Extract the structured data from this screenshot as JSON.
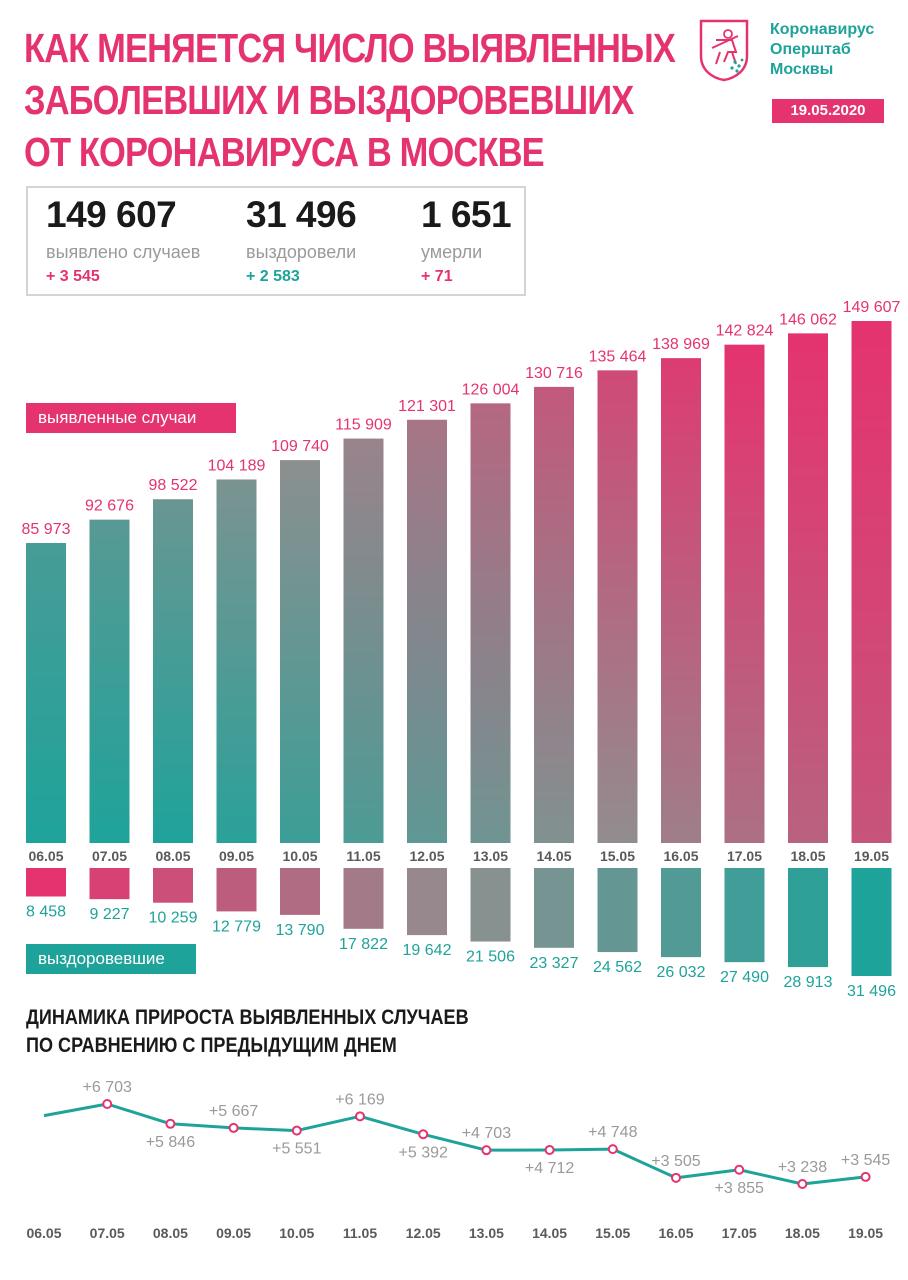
{
  "header": {
    "title_lines": [
      "КАК МЕНЯЕТСЯ ЧИСЛО ВЫЯВЛЕННЫХ",
      "ЗАБОЛЕВШИХ И ВЫЗДОРОВЕВШИХ",
      "ОТ КОРОНАВИРУСА В МОСКВЕ"
    ],
    "brand_lines": [
      "Коронавирус",
      "Оперштаб",
      "Москвы"
    ],
    "date": "19.05.2020",
    "logo_icon": "moscow-coat-of-arms-icon"
  },
  "summary": {
    "cases": {
      "value": "149 607",
      "label": "выявлено случаев",
      "delta": "+ 3 545"
    },
    "recovered": {
      "value": "31 496",
      "label": "выздоровели",
      "delta": "+ 2 583"
    },
    "deaths": {
      "value": "1 651",
      "label": "умерли",
      "delta": "+ 71"
    }
  },
  "labels": {
    "cases_tag": "выявленные случаи",
    "recovered_tag": "выздоровевшие",
    "growth_title_lines": [
      "ДИНАМИКА ПРИРОСТА ВЫЯВЛЕННЫХ СЛУЧАЕВ",
      "ПО СРАВНЕНИЮ С ПРЕДЫДУЩИМ ДНЕМ"
    ]
  },
  "colors": {
    "pink": "#e5336f",
    "teal": "#1ea39a",
    "gray_label": "#9a9a9a",
    "date_label": "#5a5a5a"
  },
  "chart_data": [
    {
      "type": "bar",
      "series_role": "cumulative detected cases",
      "categories": [
        "06.05",
        "07.05",
        "08.05",
        "09.05",
        "10.05",
        "11.05",
        "12.05",
        "13.05",
        "14.05",
        "15.05",
        "16.05",
        "17.05",
        "18.05",
        "19.05"
      ],
      "values": [
        85973,
        92676,
        98522,
        104189,
        109740,
        115909,
        121301,
        126004,
        130716,
        135464,
        138969,
        142824,
        146062,
        149607
      ],
      "value_labels": [
        "85 973",
        "92 676",
        "98 522",
        "104 189",
        "109 740",
        "115 909",
        "121 301",
        "126 004",
        "130 716",
        "135 464",
        "138 969",
        "142 824",
        "146 062",
        "149 607"
      ],
      "legend": "выявленные случаи"
    },
    {
      "type": "bar",
      "series_role": "cumulative recovered",
      "categories": [
        "06.05",
        "07.05",
        "08.05",
        "09.05",
        "10.05",
        "11.05",
        "12.05",
        "13.05",
        "14.05",
        "15.05",
        "16.05",
        "17.05",
        "18.05",
        "19.05"
      ],
      "values": [
        8458,
        9227,
        10259,
        12779,
        13790,
        17822,
        19642,
        21506,
        23327,
        24562,
        26032,
        27490,
        28913,
        31496
      ],
      "value_labels": [
        "8 458",
        "9 227",
        "10 259",
        "12 779",
        "13 790",
        "17 822",
        "19 642",
        "21 506",
        "23 327",
        "24 562",
        "26 032",
        "27 490",
        "28 913",
        "31 496"
      ],
      "legend": "выздоровевшие",
      "direction": "downward"
    },
    {
      "type": "line",
      "title": "ДИНАМИКА ПРИРОСТА ВЫЯВЛЕННЫХ СЛУЧАЕВ ПО СРАВНЕНИЮ С ПРЕДЫДУЩИМ ДНЕМ",
      "categories": [
        "06.05",
        "07.05",
        "08.05",
        "09.05",
        "10.05",
        "11.05",
        "12.05",
        "13.05",
        "14.05",
        "15.05",
        "16.05",
        "17.05",
        "18.05",
        "19.05"
      ],
      "values": [
        6200,
        6703,
        5846,
        5667,
        5551,
        6169,
        5392,
        4703,
        4712,
        4748,
        3505,
        3855,
        3238,
        3545
      ],
      "value_labels": [
        "",
        "+6 703",
        "+5 846",
        "+5 667",
        "+5 551",
        "+6 169",
        "+5 392",
        "+4 703",
        "+4 712",
        "+4 748",
        "+3 505",
        "+3 855",
        "+3 238",
        "+3 545"
      ],
      "label_position": [
        "",
        "above",
        "below",
        "above",
        "below",
        "above",
        "below",
        "above",
        "below",
        "above",
        "above",
        "below",
        "above",
        "above"
      ],
      "color": "#1ea39a"
    }
  ]
}
